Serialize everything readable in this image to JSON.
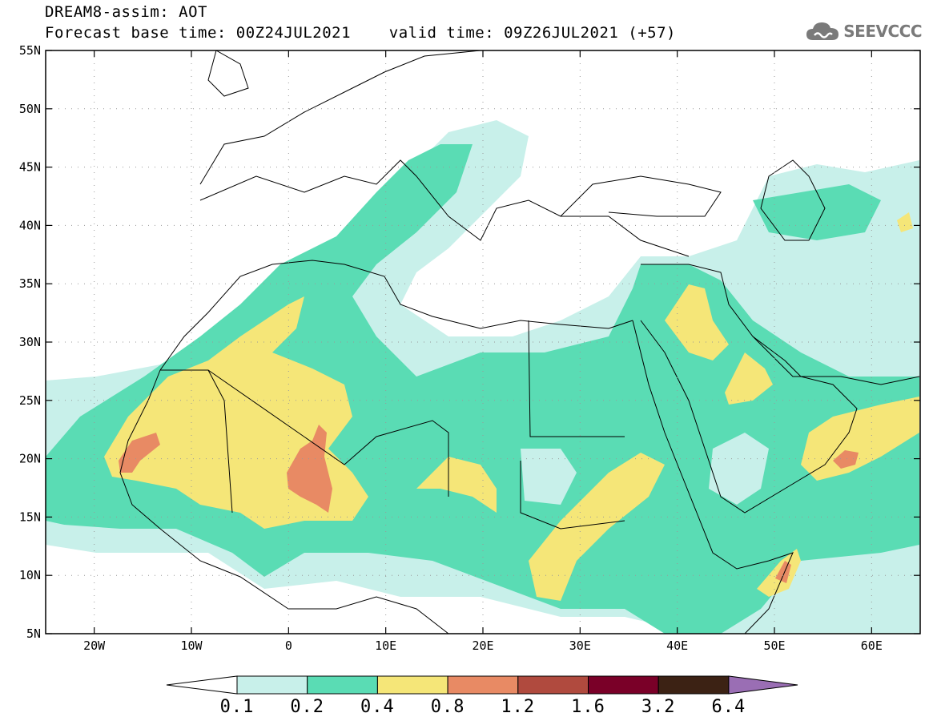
{
  "header": {
    "title_line1": "DREAM8-assim: AOT",
    "title_line2": "Forecast base time: 00Z24JUL2021    valid time: 09Z26JUL2021 (+57)"
  },
  "logo": {
    "text": "SEEVCCC",
    "icon": "cloud-icon"
  },
  "map": {
    "lon_range": [
      -25,
      65
    ],
    "lat_range": [
      5,
      55
    ],
    "lon_labels": [
      "20W",
      "10W",
      "0",
      "10E",
      "20E",
      "30E",
      "40E",
      "50E",
      "60E"
    ],
    "lat_labels": [
      "55N",
      "50N",
      "45N",
      "40N",
      "35N",
      "30N",
      "25N",
      "20N",
      "15N",
      "10N",
      "5N"
    ]
  },
  "colorbar": {
    "labels": [
      "0.1",
      "0.2",
      "0.4",
      "0.8",
      "1.2",
      "1.6",
      "3.2",
      "6.4"
    ],
    "colors": [
      "#c8f0ea",
      "#5adcb4",
      "#f5e678",
      "#e88a64",
      "#b04a3e",
      "#7a0028",
      "#3c2214",
      "#9a6eb4"
    ]
  }
}
